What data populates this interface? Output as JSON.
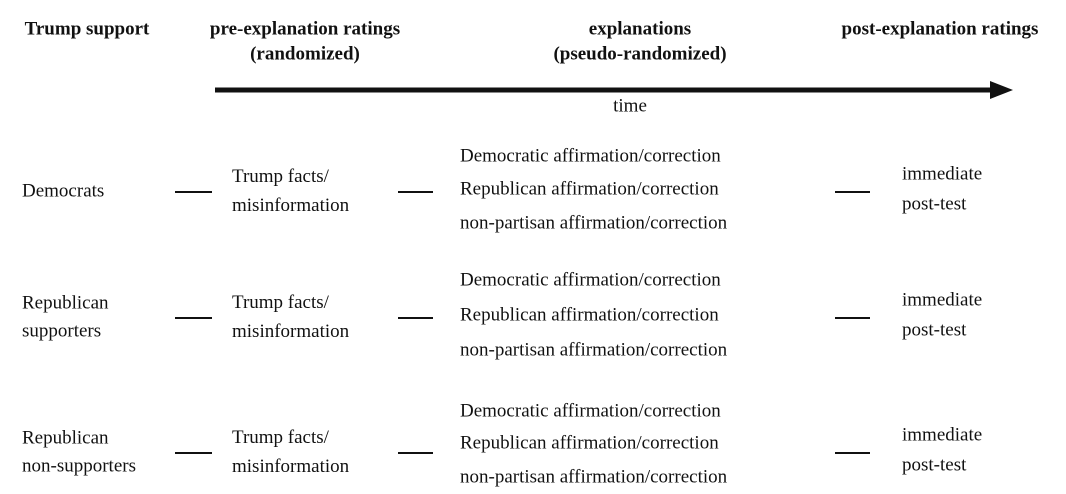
{
  "headers": [
    {
      "lines": [
        "Trump support"
      ]
    },
    {
      "lines": [
        "pre-explanation ratings",
        "(randomized)"
      ]
    },
    {
      "lines": [
        "explanations",
        "(pseudo-randomized)"
      ]
    },
    {
      "lines": [
        "post-explanation ratings"
      ]
    }
  ],
  "time_label": "time",
  "rows": [
    {
      "group": [
        "Democrats"
      ],
      "pre": [
        "Trump facts/",
        "misinformation"
      ],
      "explanations": [
        "Democratic affirmation/correction",
        "Republican affirmation/correction",
        "non-partisan affirmation/correction"
      ],
      "post": [
        "immediate",
        "post-test"
      ]
    },
    {
      "group": [
        "Republican",
        "supporters"
      ],
      "pre": [
        "Trump facts/",
        "misinformation"
      ],
      "explanations": [
        "Democratic affirmation/correction",
        "Republican affirmation/correction",
        "non-partisan affirmation/correction"
      ],
      "post": [
        "immediate",
        "post-test"
      ]
    },
    {
      "group": [
        "Republican",
        "non-supporters"
      ],
      "pre": [
        "Trump facts/",
        "misinformation"
      ],
      "explanations": [
        "Democratic affirmation/correction",
        "Republican affirmation/correction",
        "non-partisan affirmation/correction"
      ],
      "post": [
        "immediate",
        "post-test"
      ]
    }
  ]
}
